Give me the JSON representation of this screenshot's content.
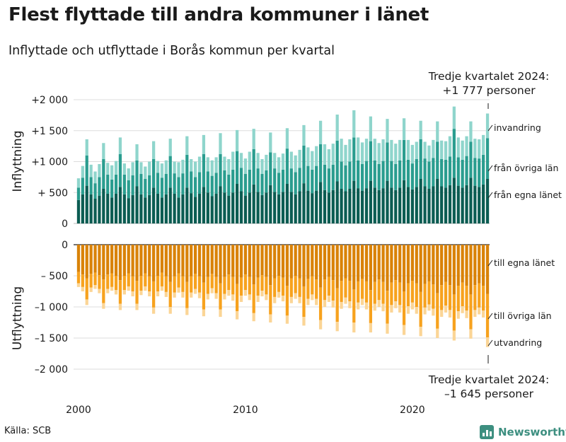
{
  "title": "Flest flyttade till andra kommuner i länet",
  "subtitle": "Inflyttade och utflyttade i Borås kommun per kvartal",
  "source": "Källa: SCB",
  "brand": "Newsworthy",
  "colors": {
    "in_own": "#0b5c52",
    "in_other": "#2a9d8f",
    "in_abroad": "#8fd5cc",
    "out_own": "#d98208",
    "out_other": "#f7a21e",
    "out_abroad": "#fbd596",
    "brand": "#3d8f80"
  },
  "chart_data": {
    "type": "bar",
    "stacked": true,
    "diverging": true,
    "title": "Flest flyttade till andra kommuner i länet",
    "subtitle": "Inflyttade och utflyttade i Borås kommun per kvartal",
    "x_tick_labels": [
      "2000",
      "2010",
      "2020"
    ],
    "x_range": [
      "2000 Q1",
      "2024 Q3"
    ],
    "inflow": {
      "axis_label": "Inflyttning",
      "ylim": [
        0,
        2000
      ],
      "tick_labels": [
        "0",
        "+ 500",
        "+1 000",
        "+1 500",
        "+2 000"
      ],
      "series_names": [
        "från egna länet",
        "från övriga län",
        "invandring"
      ],
      "series_labels": [
        "från egna länet",
        "från övriga län",
        "invandring"
      ],
      "callout": [
        "Tredje kvartalet 2024:",
        "+1 777 personer"
      ],
      "last_total": 1777
    },
    "outflow": {
      "axis_label": "Utflyttning",
      "ylim": [
        -2000,
        0
      ],
      "tick_labels": [
        "0",
        "– 500",
        "–1 000",
        "–1 500",
        "–2 000"
      ],
      "series_names": [
        "till egna länet",
        "till övriga län",
        "utvandring"
      ],
      "series_labels": [
        "till egna länet",
        "till övriga län",
        "utvandring"
      ],
      "callout": [
        "Tredje kvartalet 2024:",
        "–1 645 personer"
      ],
      "last_total": -1645
    },
    "quarters": [
      [
        "2000 Q1",
        380,
        200,
        150,
        -440,
        -180,
        -60
      ],
      [
        "2000 Q2",
        470,
        270,
        190,
        -480,
        -200,
        -70
      ],
      [
        "2000 Q3",
        610,
        490,
        260,
        -540,
        -340,
        -90
      ],
      [
        "2000 Q4",
        470,
        280,
        200,
        -470,
        -220,
        -70
      ],
      [
        "2001 Q1",
        400,
        250,
        190,
        -450,
        -200,
        -60
      ],
      [
        "2001 Q2",
        450,
        300,
        210,
        -490,
        -220,
        -70
      ],
      [
        "2001 Q3",
        560,
        480,
        260,
        -560,
        -380,
        -90
      ],
      [
        "2001 Q4",
        480,
        310,
        190,
        -480,
        -230,
        -70
      ],
      [
        "2002 Q1",
        420,
        290,
        230,
        -460,
        -220,
        -60
      ],
      [
        "2002 Q2",
        480,
        310,
        220,
        -500,
        -230,
        -70
      ],
      [
        "2002 Q3",
        590,
        530,
        270,
        -570,
        -380,
        -100
      ],
      [
        "2002 Q4",
        470,
        320,
        180,
        -500,
        -230,
        -70
      ],
      [
        "2003 Q1",
        410,
        290,
        190,
        -460,
        -210,
        -70
      ],
      [
        "2003 Q2",
        460,
        320,
        210,
        -510,
        -240,
        -80
      ],
      [
        "2003 Q3",
        600,
        420,
        260,
        -580,
        -370,
        -100
      ],
      [
        "2003 Q4",
        470,
        330,
        190,
        -500,
        -240,
        -70
      ],
      [
        "2004 Q1",
        420,
        300,
        200,
        -460,
        -210,
        -70
      ],
      [
        "2004 Q2",
        460,
        320,
        220,
        -510,
        -240,
        -80
      ],
      [
        "2004 Q3",
        580,
        460,
        290,
        -590,
        -420,
        -100
      ],
      [
        "2004 Q4",
        480,
        340,
        190,
        -500,
        -250,
        -80
      ],
      [
        "2005 Q1",
        420,
        320,
        230,
        -450,
        -220,
        -70
      ],
      [
        "2005 Q2",
        470,
        330,
        220,
        -510,
        -250,
        -80
      ],
      [
        "2005 Q3",
        580,
        510,
        280,
        -600,
        -400,
        -110
      ],
      [
        "2005 Q4",
        480,
        330,
        190,
        -510,
        -260,
        -80
      ],
      [
        "2006 Q1",
        420,
        330,
        240,
        -460,
        -230,
        -80
      ],
      [
        "2006 Q2",
        470,
        340,
        220,
        -510,
        -250,
        -90
      ],
      [
        "2006 Q3",
        580,
        530,
        300,
        -600,
        -420,
        -110
      ],
      [
        "2006 Q4",
        490,
        350,
        200,
        -510,
        -260,
        -80
      ],
      [
        "2007 Q1",
        430,
        320,
        250,
        -470,
        -240,
        -80
      ],
      [
        "2007 Q2",
        480,
        350,
        250,
        -510,
        -260,
        -90
      ],
      [
        "2007 Q3",
        590,
        530,
        310,
        -610,
        -430,
        -110
      ],
      [
        "2007 Q4",
        500,
        340,
        230,
        -520,
        -270,
        -90
      ],
      [
        "2008 Q1",
        440,
        330,
        250,
        -470,
        -230,
        -80
      ],
      [
        "2008 Q2",
        480,
        340,
        250,
        -520,
        -260,
        -90
      ],
      [
        "2008 Q3",
        600,
        520,
        340,
        -620,
        -420,
        -120
      ],
      [
        "2008 Q4",
        500,
        360,
        220,
        -520,
        -270,
        -90
      ],
      [
        "2009 Q1",
        450,
        340,
        250,
        -480,
        -250,
        -90
      ],
      [
        "2009 Q2",
        500,
        370,
        290,
        -520,
        -280,
        -100
      ],
      [
        "2009 Q3",
        640,
        530,
        340,
        -630,
        -440,
        -130
      ],
      [
        "2009 Q4",
        520,
        380,
        240,
        -530,
        -290,
        -100
      ],
      [
        "2010 Q1",
        450,
        350,
        250,
        -480,
        -250,
        -90
      ],
      [
        "2010 Q2",
        500,
        370,
        290,
        -520,
        -280,
        -90
      ],
      [
        "2010 Q3",
        630,
        570,
        330,
        -640,
        -460,
        -130
      ],
      [
        "2010 Q4",
        510,
        380,
        250,
        -530,
        -290,
        -100
      ],
      [
        "2011 Q1",
        460,
        340,
        240,
        -490,
        -250,
        -90
      ],
      [
        "2011 Q2",
        500,
        360,
        250,
        -520,
        -280,
        -90
      ],
      [
        "2011 Q3",
        620,
        530,
        320,
        -650,
        -470,
        -130
      ],
      [
        "2011 Q4",
        510,
        380,
        250,
        -540,
        -300,
        -100
      ],
      [
        "2012 Q1",
        470,
        350,
        250,
        -500,
        -260,
        -90
      ],
      [
        "2012 Q2",
        510,
        360,
        260,
        -530,
        -290,
        -90
      ],
      [
        "2012 Q3",
        640,
        570,
        330,
        -660,
        -480,
        -130
      ],
      [
        "2012 Q4",
        510,
        380,
        270,
        -540,
        -300,
        -100
      ],
      [
        "2013 Q1",
        470,
        360,
        270,
        -500,
        -280,
        -90
      ],
      [
        "2013 Q2",
        520,
        380,
        290,
        -540,
        -300,
        -100
      ],
      [
        "2013 Q3",
        650,
        610,
        330,
        -670,
        -490,
        -140
      ],
      [
        "2013 Q4",
        530,
        400,
        300,
        -550,
        -320,
        -100
      ],
      [
        "2014 Q1",
        490,
        380,
        300,
        -510,
        -290,
        -90
      ],
      [
        "2014 Q2",
        530,
        400,
        320,
        -560,
        -310,
        -100
      ],
      [
        "2014 Q3",
        670,
        610,
        380,
        -690,
        -520,
        -150
      ],
      [
        "2014 Q4",
        540,
        410,
        330,
        -560,
        -330,
        -110
      ],
      [
        "2015 Q1",
        500,
        390,
        310,
        -520,
        -300,
        -100
      ],
      [
        "2015 Q2",
        540,
        410,
        340,
        -570,
        -330,
        -110
      ],
      [
        "2015 Q3",
        680,
        660,
        420,
        -700,
        -540,
        -150
      ],
      [
        "2015 Q4",
        560,
        440,
        370,
        -580,
        -340,
        -110
      ],
      [
        "2016 Q1",
        520,
        420,
        330,
        -540,
        -310,
        -100
      ],
      [
        "2016 Q2",
        560,
        440,
        360,
        -580,
        -330,
        -110
      ],
      [
        "2016 Q3",
        690,
        700,
        440,
        -720,
        -530,
        -160
      ],
      [
        "2016 Q4",
        570,
        450,
        370,
        -590,
        -340,
        -110
      ],
      [
        "2017 Q1",
        530,
        430,
        350,
        -550,
        -320,
        -100
      ],
      [
        "2017 Q2",
        570,
        440,
        360,
        -590,
        -340,
        -110
      ],
      [
        "2017 Q3",
        690,
        640,
        400,
        -730,
        -530,
        -150
      ],
      [
        "2017 Q4",
        580,
        440,
        350,
        -600,
        -350,
        -110
      ],
      [
        "2018 Q1",
        540,
        420,
        340,
        -560,
        -330,
        -110
      ],
      [
        "2018 Q2",
        570,
        440,
        350,
        -600,
        -350,
        -120
      ],
      [
        "2018 Q3",
        690,
        620,
        380,
        -740,
        -530,
        -160
      ],
      [
        "2018 Q4",
        580,
        430,
        340,
        -610,
        -360,
        -120
      ],
      [
        "2019 Q1",
        540,
        420,
        330,
        -570,
        -340,
        -110
      ],
      [
        "2019 Q2",
        580,
        440,
        330,
        -610,
        -360,
        -120
      ],
      [
        "2019 Q3",
        700,
        650,
        350,
        -750,
        -540,
        -160
      ],
      [
        "2019 Q4",
        590,
        440,
        320,
        -620,
        -370,
        -120
      ],
      [
        "2020 Q1",
        550,
        420,
        300,
        -580,
        -350,
        -110
      ],
      [
        "2020 Q2",
        590,
        450,
        280,
        -620,
        -380,
        -110
      ],
      [
        "2020 Q3",
        720,
        640,
        300,
        -760,
        -560,
        -150
      ],
      [
        "2020 Q4",
        600,
        450,
        270,
        -630,
        -380,
        -110
      ],
      [
        "2021 Q1",
        560,
        440,
        260,
        -590,
        -370,
        -100
      ],
      [
        "2021 Q2",
        600,
        460,
        290,
        -640,
        -390,
        -110
      ],
      [
        "2021 Q3",
        720,
        600,
        330,
        -780,
        -570,
        -150
      ],
      [
        "2021 Q4",
        600,
        440,
        300,
        -650,
        -400,
        -110
      ],
      [
        "2022 Q1",
        580,
        450,
        300,
        -600,
        -380,
        -110
      ],
      [
        "2022 Q2",
        620,
        460,
        330,
        -650,
        -400,
        -120
      ],
      [
        "2022 Q3",
        740,
        790,
        360,
        -800,
        -580,
        -160
      ],
      [
        "2022 Q4",
        610,
        460,
        320,
        -660,
        -410,
        -120
      ],
      [
        "2023 Q1",
        580,
        450,
        310,
        -610,
        -380,
        -110
      ],
      [
        "2023 Q2",
        620,
        470,
        320,
        -660,
        -400,
        -120
      ],
      [
        "2023 Q3",
        740,
        580,
        330,
        -800,
        -560,
        -150
      ],
      [
        "2023 Q4",
        610,
        450,
        310,
        -650,
        -400,
        -110
      ],
      [
        "2024 Q1",
        590,
        460,
        310,
        -620,
        -390,
        -110
      ],
      [
        "2024 Q2",
        630,
        480,
        320,
        -660,
        -400,
        -110
      ],
      [
        "2024 Q3",
        720,
        660,
        397,
        -790,
        -700,
        -155
      ]
    ]
  }
}
